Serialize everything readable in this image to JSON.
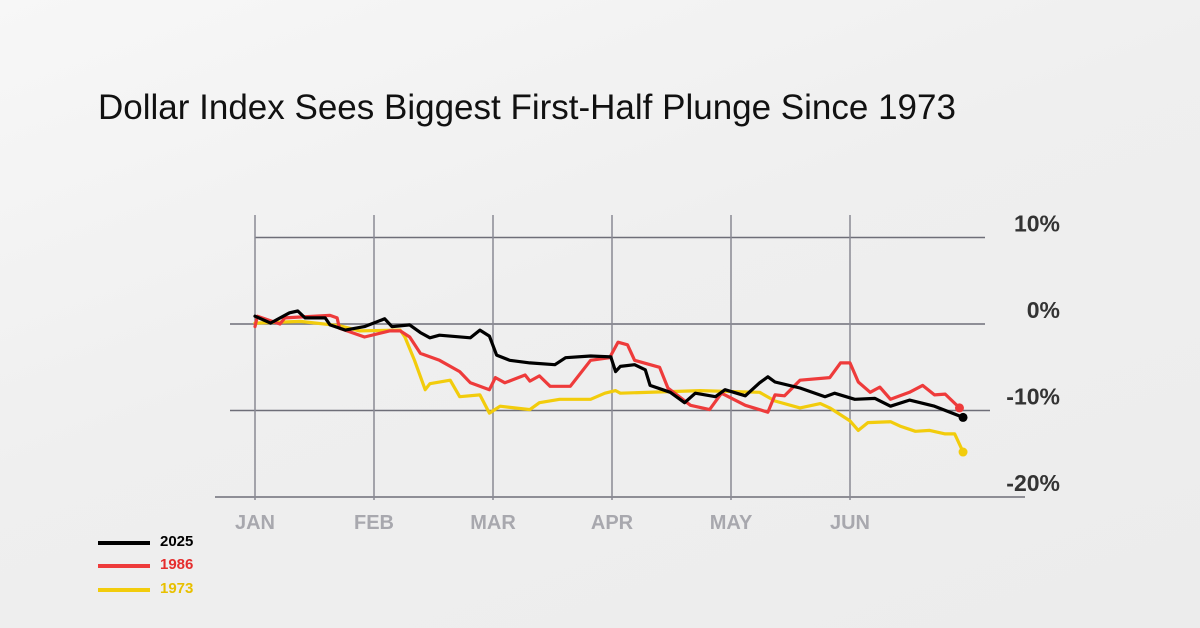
{
  "title": "Dollar Index Sees Biggest First-Half Plunge Since 1973",
  "chart_data": {
    "type": "line",
    "title": "Dollar Index Sees Biggest First-Half Plunge Since 1973",
    "xlabel": "",
    "ylabel": "",
    "x_ticks": [
      "JAN",
      "FEB",
      "MAR",
      "APR",
      "MAY",
      "JUN"
    ],
    "y_ticks": [
      10,
      0,
      -10,
      -20
    ],
    "y_tick_labels": [
      "10%",
      "0%",
      "-10%",
      "-20%"
    ],
    "ylim": [
      -20,
      10
    ],
    "grid": true,
    "legend_position": "bottom-left",
    "series": [
      {
        "name": "2025",
        "color": "#000000",
        "points": [
          [
            0,
            0.9
          ],
          [
            0.13,
            0.1
          ],
          [
            0.29,
            1.3
          ],
          [
            0.36,
            1.5
          ],
          [
            0.42,
            0.7
          ],
          [
            0.59,
            0.7
          ],
          [
            0.63,
            -0.1
          ],
          [
            0.76,
            -0.7
          ],
          [
            0.92,
            -0.3
          ],
          [
            1.09,
            0.6
          ],
          [
            1.15,
            -0.3
          ],
          [
            1.3,
            -0.1
          ],
          [
            1.39,
            -1.0
          ],
          [
            1.47,
            -1.6
          ],
          [
            1.55,
            -1.3
          ],
          [
            1.81,
            -1.6
          ],
          [
            1.89,
            -0.7
          ],
          [
            1.97,
            -1.4
          ],
          [
            2.03,
            -3.6
          ],
          [
            2.14,
            -4.2
          ],
          [
            2.31,
            -4.5
          ],
          [
            2.52,
            -4.7
          ],
          [
            2.61,
            -3.9
          ],
          [
            2.82,
            -3.7
          ],
          [
            2.99,
            -3.8
          ],
          [
            3.03,
            -5.5
          ],
          [
            3.07,
            -4.9
          ],
          [
            3.19,
            -4.7
          ],
          [
            3.28,
            -5.3
          ],
          [
            3.32,
            -7.1
          ],
          [
            3.49,
            -7.9
          ],
          [
            3.61,
            -9.1
          ],
          [
            3.7,
            -8.0
          ],
          [
            3.87,
            -8.4
          ],
          [
            3.95,
            -7.6
          ],
          [
            4.12,
            -8.3
          ],
          [
            4.24,
            -6.8
          ],
          [
            4.31,
            -6.1
          ],
          [
            4.37,
            -6.7
          ],
          [
            4.58,
            -7.4
          ],
          [
            4.79,
            -8.4
          ],
          [
            4.87,
            -8.0
          ],
          [
            5.04,
            -8.7
          ],
          [
            5.21,
            -8.6
          ],
          [
            5.34,
            -9.5
          ],
          [
            5.5,
            -8.8
          ],
          [
            5.71,
            -9.5
          ],
          [
            5.84,
            -10.2
          ],
          [
            5.95,
            -10.8
          ]
        ]
      },
      {
        "name": "1986",
        "color": "#ee3b3b",
        "points": [
          [
            0,
            -0.3
          ],
          [
            0.02,
            0.9
          ],
          [
            0.21,
            0
          ],
          [
            0.25,
            0.7
          ],
          [
            0.63,
            1.0
          ],
          [
            0.69,
            0.7
          ],
          [
            0.71,
            -0.5
          ],
          [
            0.92,
            -1.5
          ],
          [
            1.13,
            -0.8
          ],
          [
            1.22,
            -0.8
          ],
          [
            1.3,
            -1.5
          ],
          [
            1.39,
            -3.4
          ],
          [
            1.55,
            -4.2
          ],
          [
            1.72,
            -5.5
          ],
          [
            1.81,
            -6.8
          ],
          [
            1.97,
            -7.6
          ],
          [
            2.02,
            -6.2
          ],
          [
            2.1,
            -6.8
          ],
          [
            2.27,
            -5.9
          ],
          [
            2.31,
            -6.6
          ],
          [
            2.39,
            -6.0
          ],
          [
            2.48,
            -7.2
          ],
          [
            2.65,
            -7.2
          ],
          [
            2.82,
            -4.2
          ],
          [
            2.98,
            -3.9
          ],
          [
            3.05,
            -2.1
          ],
          [
            3.13,
            -2.4
          ],
          [
            3.19,
            -4.2
          ],
          [
            3.4,
            -5.0
          ],
          [
            3.47,
            -7.4
          ],
          [
            3.66,
            -9.4
          ],
          [
            3.82,
            -9.9
          ],
          [
            3.92,
            -8.0
          ],
          [
            4.12,
            -9.4
          ],
          [
            4.31,
            -10.2
          ],
          [
            4.37,
            -8.2
          ],
          [
            4.45,
            -8.3
          ],
          [
            4.58,
            -6.5
          ],
          [
            4.83,
            -6.2
          ],
          [
            4.92,
            -4.5
          ],
          [
            5.0,
            -4.5
          ],
          [
            5.07,
            -6.7
          ],
          [
            5.17,
            -7.9
          ],
          [
            5.25,
            -7.3
          ],
          [
            5.34,
            -8.7
          ],
          [
            5.5,
            -7.9
          ],
          [
            5.61,
            -7.1
          ],
          [
            5.71,
            -8.2
          ],
          [
            5.8,
            -8.1
          ],
          [
            5.92,
            -9.7
          ]
        ]
      },
      {
        "name": "1973",
        "color": "#f2cc0c",
        "points": [
          [
            0,
            0.1
          ],
          [
            0.38,
            0.3
          ],
          [
            0.71,
            -0.2
          ],
          [
            0.88,
            -0.8
          ],
          [
            1.22,
            -0.7
          ],
          [
            1.26,
            -1.5
          ],
          [
            1.34,
            -4.2
          ],
          [
            1.43,
            -7.6
          ],
          [
            1.47,
            -6.9
          ],
          [
            1.64,
            -6.5
          ],
          [
            1.72,
            -8.4
          ],
          [
            1.89,
            -8.2
          ],
          [
            1.97,
            -10.3
          ],
          [
            2.06,
            -9.5
          ],
          [
            2.31,
            -9.9
          ],
          [
            2.39,
            -9.1
          ],
          [
            2.56,
            -8.7
          ],
          [
            2.82,
            -8.7
          ],
          [
            2.94,
            -8.0
          ],
          [
            3.03,
            -7.7
          ],
          [
            3.07,
            -8.0
          ],
          [
            3.74,
            -7.7
          ],
          [
            4.24,
            -7.9
          ],
          [
            4.37,
            -8.9
          ],
          [
            4.58,
            -9.7
          ],
          [
            4.75,
            -9.2
          ],
          [
            4.83,
            -9.7
          ],
          [
            5.0,
            -11.2
          ],
          [
            5.07,
            -12.3
          ],
          [
            5.15,
            -11.4
          ],
          [
            5.34,
            -11.3
          ],
          [
            5.42,
            -11.8
          ],
          [
            5.55,
            -12.4
          ],
          [
            5.67,
            -12.3
          ],
          [
            5.8,
            -12.7
          ],
          [
            5.88,
            -12.7
          ],
          [
            5.95,
            -14.8
          ]
        ]
      }
    ]
  }
}
